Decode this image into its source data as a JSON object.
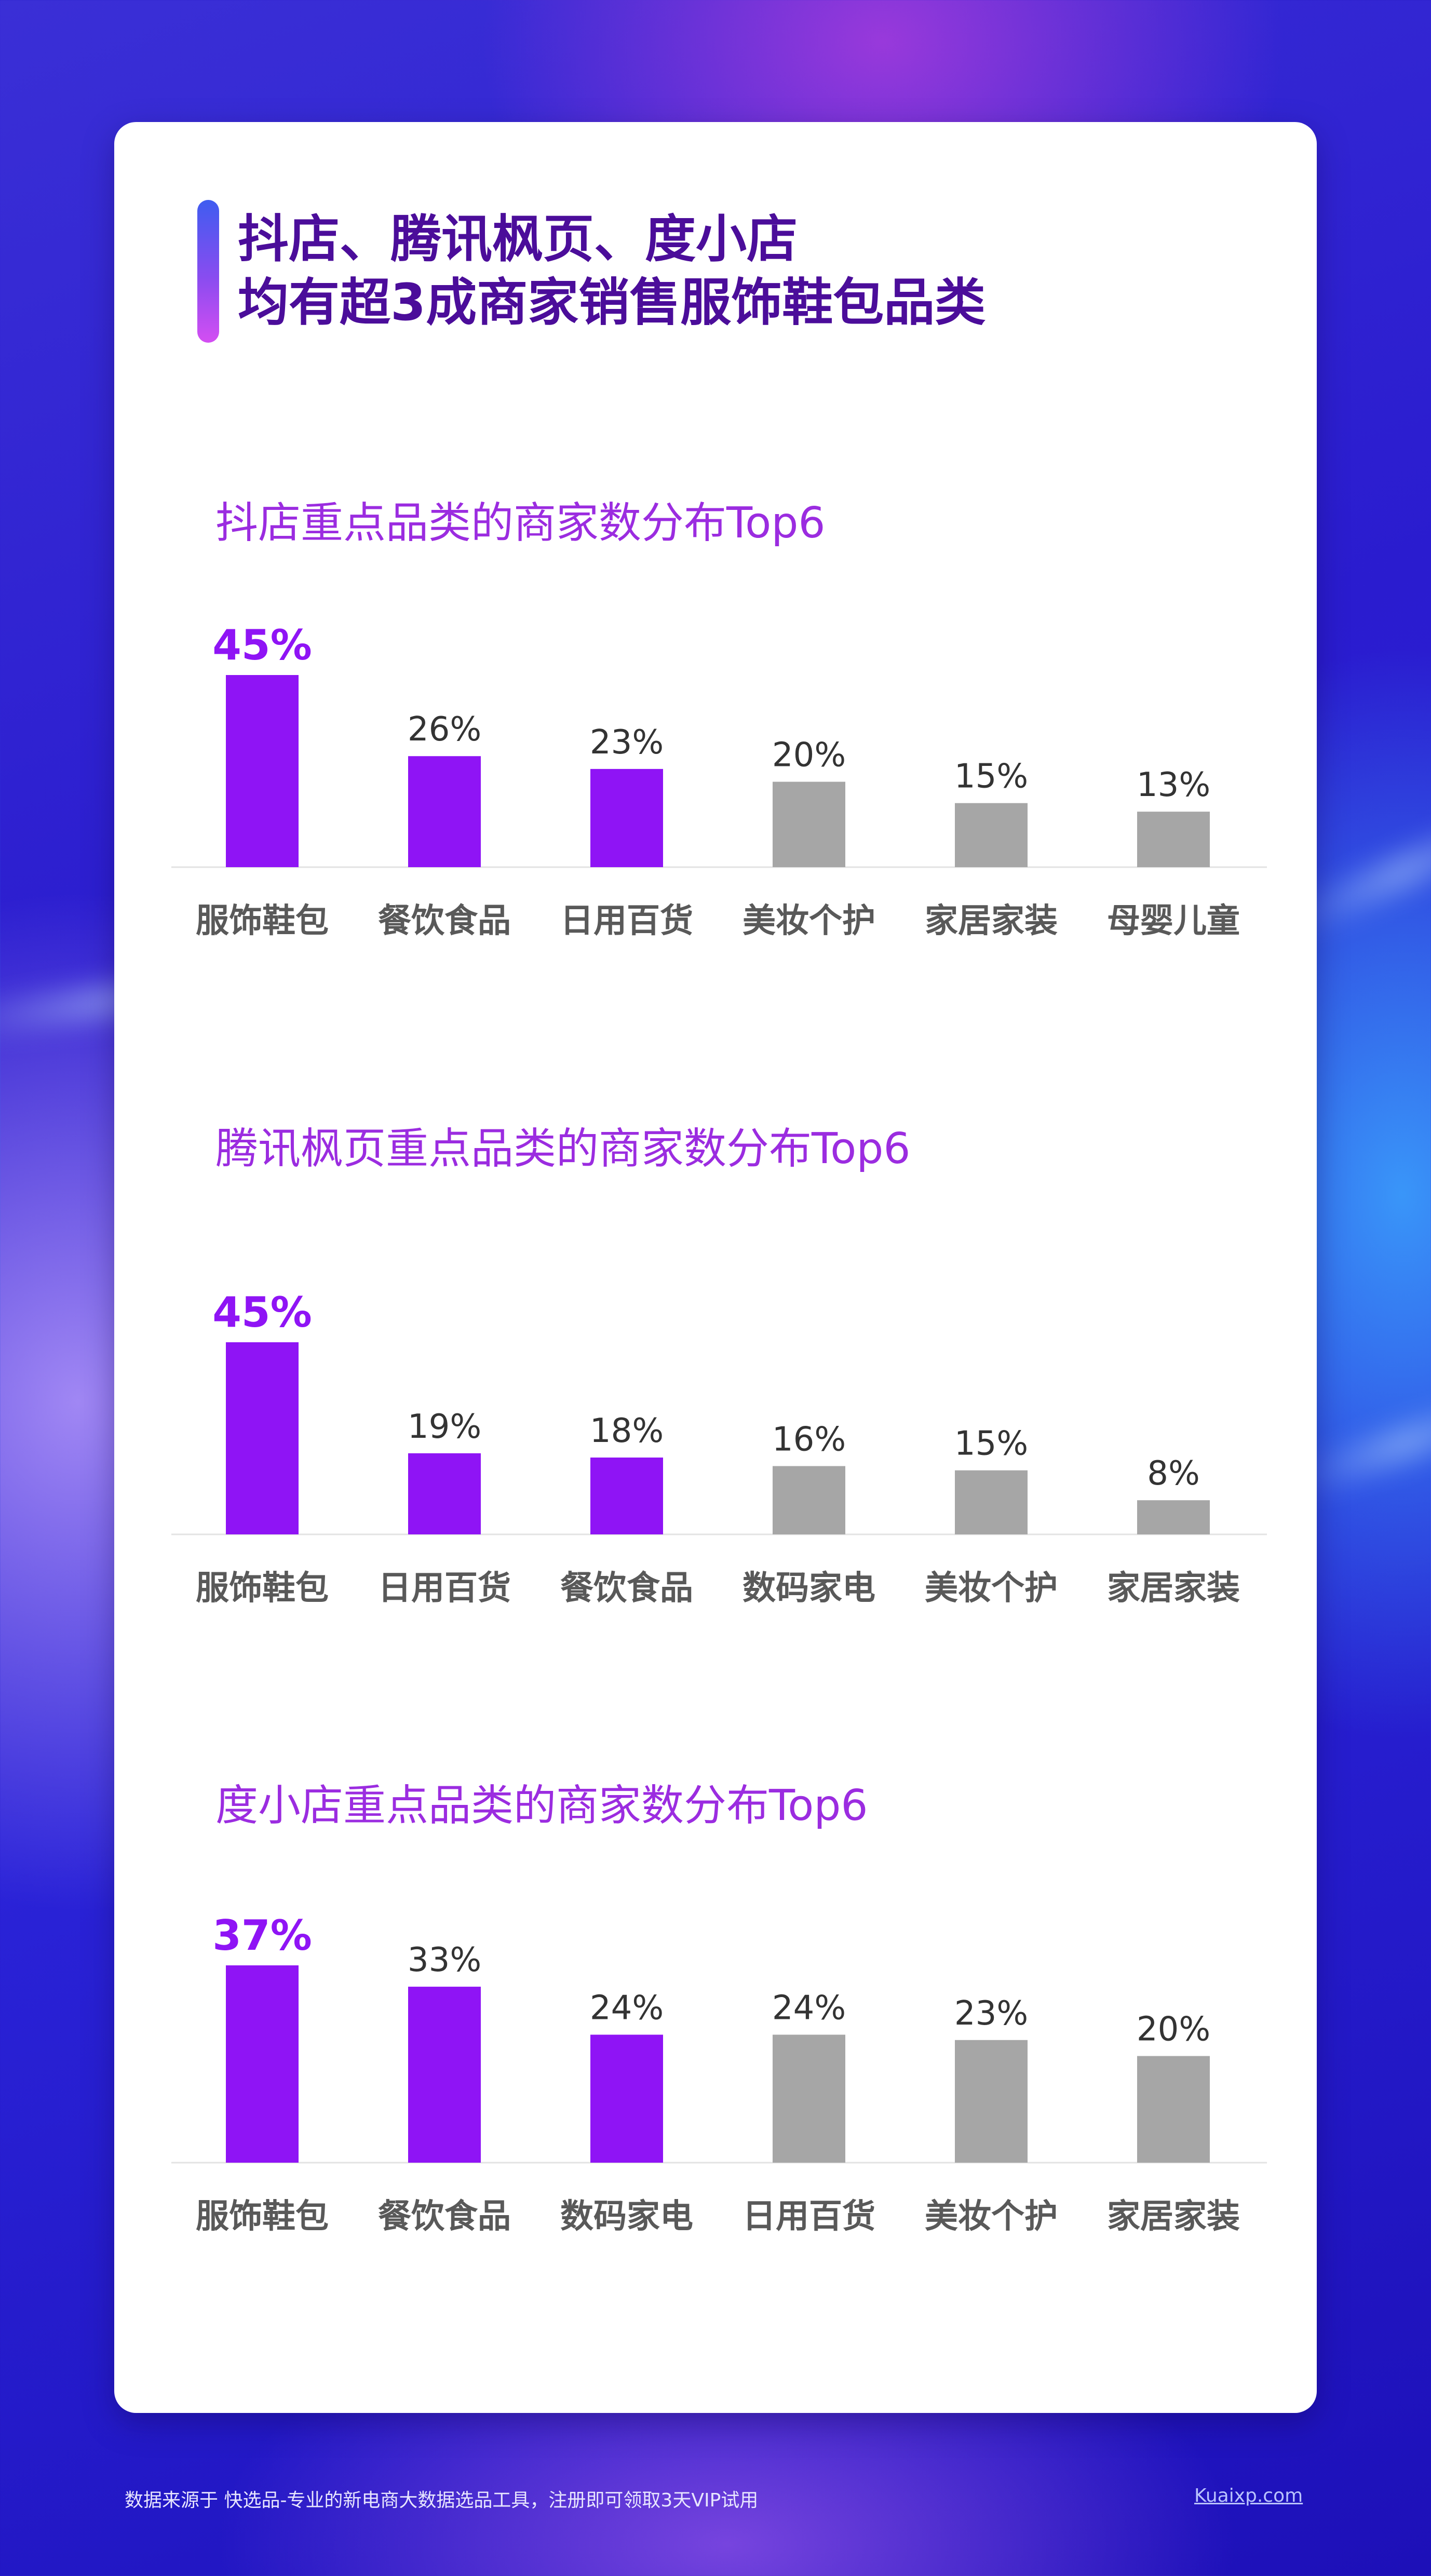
{
  "headline": {
    "line1": "抖店、腾讯枫页、度小店",
    "line2": "均有超3成商家销售服饰鞋包品类"
  },
  "colors": {
    "highlight": "#8f14f5",
    "neutral": "#a6a6a6",
    "title": "#9b2ce0",
    "headline": "#4b0d9a"
  },
  "chart_data": [
    {
      "type": "bar",
      "title": "抖店重点品类的商家数分布Top6",
      "categories": [
        "服饰鞋包",
        "餐饮食品",
        "日用百货",
        "美妆个护",
        "家居家装",
        "母婴儿童"
      ],
      "values": [
        45,
        26,
        23,
        20,
        15,
        13
      ],
      "labels": [
        "45%",
        "26%",
        "23%",
        "20%",
        "15%",
        "13%"
      ],
      "highlighted_count": 3,
      "ylim": [
        0,
        45
      ]
    },
    {
      "type": "bar",
      "title": "腾讯枫页重点品类的商家数分布Top6",
      "categories": [
        "服饰鞋包",
        "日用百货",
        "餐饮食品",
        "数码家电",
        "美妆个护",
        "家居家装"
      ],
      "values": [
        45,
        19,
        18,
        16,
        15,
        8
      ],
      "labels": [
        "45%",
        "19%",
        "18%",
        "16%",
        "15%",
        "8%"
      ],
      "highlighted_count": 3,
      "ylim": [
        0,
        45
      ]
    },
    {
      "type": "bar",
      "title": "度小店重点品类的商家数分布Top6",
      "categories": [
        "服饰鞋包",
        "餐饮食品",
        "数码家电",
        "日用百货",
        "美妆个护",
        "家居家装"
      ],
      "values": [
        37,
        33,
        24,
        24,
        23,
        20
      ],
      "labels": [
        "37%",
        "33%",
        "24%",
        "24%",
        "23%",
        "20%"
      ],
      "highlighted_count": 3,
      "ylim": [
        0,
        37
      ]
    }
  ],
  "footer": {
    "note": "数据来源于 快选品-专业的新电商大数据选品工具，注册即可领取3天VIP试用",
    "link": "Kuaixp.com"
  }
}
